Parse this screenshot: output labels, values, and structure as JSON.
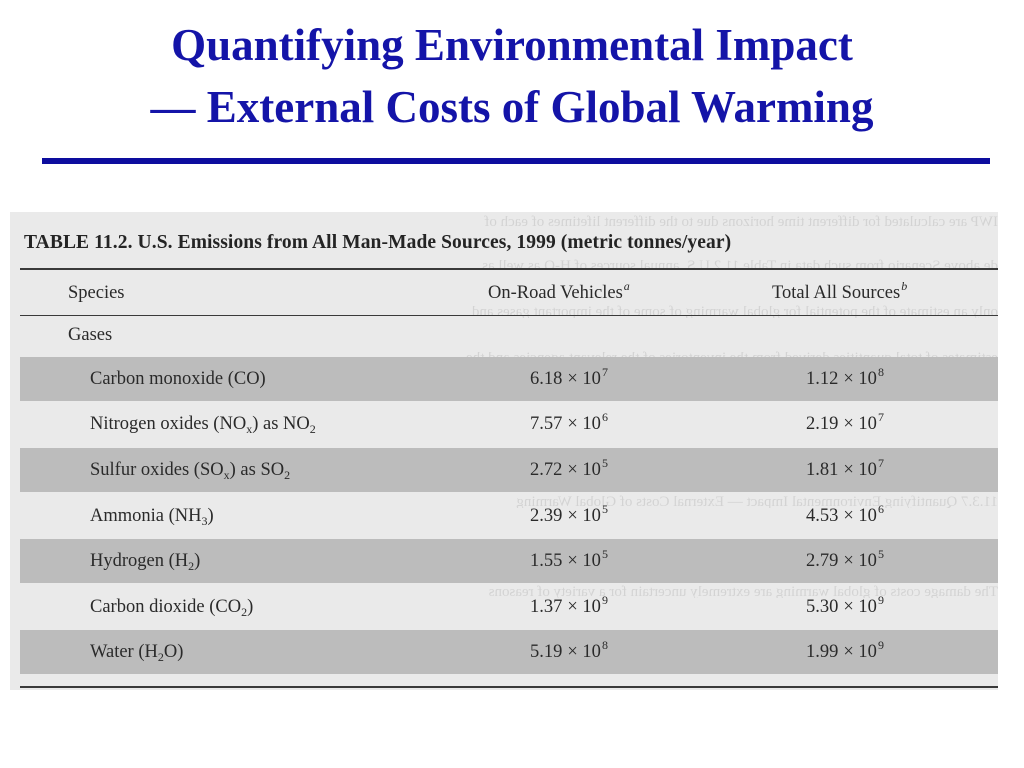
{
  "slide": {
    "title_line1": "Quantifying Environmental Impact",
    "title_line2": "— External Costs of Global Warming"
  },
  "table": {
    "caption": "TABLE 11.2.  U.S. Emissions from All Man-Made Sources, 1999 (metric tonnes/year)",
    "headers": {
      "species": "Species",
      "onroad": "On-Road Vehicles",
      "onroad_note": "a",
      "total": "Total All Sources",
      "total_note": "b"
    },
    "group_label": "Gases",
    "times": "× 10",
    "rows": [
      {
        "name": "Carbon monoxide (CO)",
        "onroad_mant": "6.18",
        "onroad_exp": "7",
        "total_mant": "1.12",
        "total_exp": "8"
      },
      {
        "name": "Nitrogen oxides (NO",
        "name_sub": "x",
        "name_tail": ") as NO",
        "name_sub2": "2",
        "onroad_mant": "7.57",
        "onroad_exp": "6",
        "total_mant": "2.19",
        "total_exp": "7"
      },
      {
        "name": "Sulfur oxides (SO",
        "name_sub": "x",
        "name_tail": ") as SO",
        "name_sub2": "2",
        "onroad_mant": "2.72",
        "onroad_exp": "5",
        "total_mant": "1.81",
        "total_exp": "7"
      },
      {
        "name": "Ammonia (NH",
        "name_sub": "3",
        "name_tail": ")",
        "onroad_mant": "2.39",
        "onroad_exp": "5",
        "total_mant": "4.53",
        "total_exp": "6"
      },
      {
        "name": "Hydrogen (H",
        "name_sub": "2",
        "name_tail": ")",
        "onroad_mant": "1.55",
        "onroad_exp": "5",
        "total_mant": "2.79",
        "total_exp": "5"
      },
      {
        "name": "Carbon dioxide (CO",
        "name_sub": "2",
        "name_tail": ")",
        "onroad_mant": "1.37",
        "onroad_exp": "9",
        "total_mant": "5.30",
        "total_exp": "9"
      },
      {
        "name": "Water (H",
        "name_sub": "2",
        "name_tail": "O)",
        "onroad_mant": "5.19",
        "onroad_exp": "8",
        "total_mant": "1.99",
        "total_exp": "9"
      }
    ]
  },
  "colors": {
    "title": "#1414a8",
    "rule": "#0d0d9e",
    "shaded_row": "#bcbcbc",
    "scan_bg": "#eaeaea"
  }
}
